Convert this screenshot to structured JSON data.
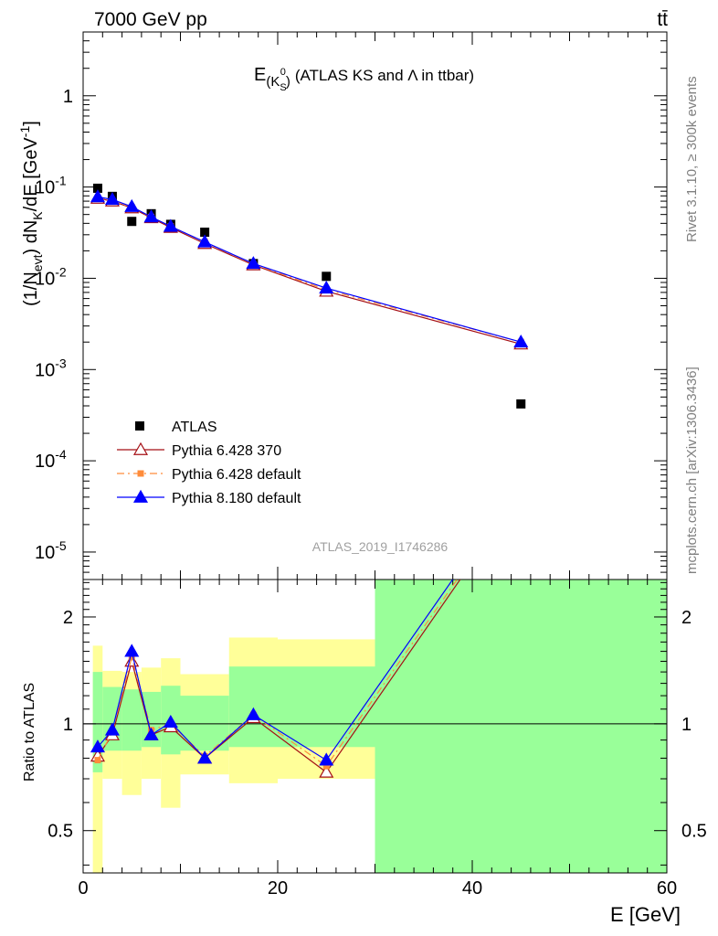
{
  "header": {
    "left": "7000 GeV pp",
    "right": "tt̄"
  },
  "side_labels": {
    "rivet": "Rivet 3.1.10, ≥ 300k events",
    "mcplots": "mcplots.cern.ch [arXiv:1306.3436]"
  },
  "analysis_id": "ATLAS_2019_I1746286",
  "colors": {
    "atlas": "#000000",
    "py6_370": "#a50f15",
    "py6_default": "#ff8c3a",
    "py8_default": "#0000ff",
    "band_inner": "#99ff99",
    "band_outer": "#ffff99"
  },
  "chart_data": [
    {
      "type": "line",
      "panel": "main",
      "title": "E(K_S^0) (ATLAS KS and Λ in ttbar)",
      "ylabel": "(1/N_evt) dN_K/dE [GeV^-1]",
      "y_scale": "log",
      "ylim": [
        5e-06,
        5
      ],
      "xlim": [
        0,
        60
      ],
      "legend_position": "lower-left",
      "legend": [
        "ATLAS",
        "Pythia 6.428 370",
        "Pythia 6.428 default",
        "Pythia 8.180 default"
      ],
      "x": [
        1.5,
        3,
        5,
        7,
        9,
        12.5,
        17.5,
        25,
        45
      ],
      "series": [
        {
          "name": "ATLAS",
          "marker": "square",
          "values": [
            0.097,
            0.079,
            0.042,
            0.051,
            0.039,
            0.032,
            0.0145,
            0.0105,
            0.00042
          ]
        },
        {
          "name": "Pythia 6.428 370",
          "marker": "open-triangle",
          "values": [
            0.075,
            0.07,
            0.059,
            0.046,
            0.036,
            0.024,
            0.014,
            0.0072,
            0.0019
          ]
        },
        {
          "name": "Pythia 6.428 default",
          "marker": "small-square",
          "values": [
            0.076,
            0.071,
            0.06,
            0.047,
            0.037,
            0.025,
            0.0143,
            0.0075,
            0.002
          ]
        },
        {
          "name": "Pythia 8.180 default",
          "marker": "filled-triangle",
          "values": [
            0.078,
            0.073,
            0.061,
            0.047,
            0.037,
            0.025,
            0.0145,
            0.0078,
            0.002
          ]
        }
      ]
    },
    {
      "type": "line",
      "panel": "ratio",
      "ylabel": "Ratio to ATLAS",
      "xlabel": "E [GeV]",
      "y_scale": "log",
      "ylim": [
        0.38,
        2.55
      ],
      "xlim": [
        0,
        60
      ],
      "x_ticks": [
        0,
        20,
        40,
        60
      ],
      "y_ticks": [
        0.5,
        1,
        2
      ],
      "bins": [
        [
          1,
          2
        ],
        [
          2,
          4
        ],
        [
          4,
          6
        ],
        [
          6,
          8
        ],
        [
          8,
          10
        ],
        [
          10,
          15
        ],
        [
          15,
          20
        ],
        [
          20,
          30
        ],
        [
          30,
          60
        ]
      ],
      "band_inner": [
        [
          0.73,
          1.4
        ],
        [
          0.84,
          1.27
        ],
        [
          0.84,
          1.25
        ],
        [
          0.86,
          1.23
        ],
        [
          0.82,
          1.28
        ],
        [
          0.84,
          1.2
        ],
        [
          0.86,
          1.45
        ],
        [
          0.86,
          1.45
        ],
        [
          0.38,
          2.55
        ]
      ],
      "band_outer": [
        [
          0.36,
          1.66
        ],
        [
          0.7,
          1.41
        ],
        [
          0.63,
          1.4
        ],
        [
          0.7,
          1.44
        ],
        [
          0.58,
          1.53
        ],
        [
          0.72,
          1.38
        ],
        [
          0.68,
          1.75
        ],
        [
          0.7,
          1.73
        ],
        [
          0.38,
          2.55
        ]
      ],
      "x": [
        1.5,
        3,
        5,
        7,
        9,
        12.5,
        17.5,
        25,
        45
      ],
      "series": [
        {
          "name": "Pythia 6.428 370",
          "values": [
            0.81,
            0.93,
            1.5,
            0.93,
            0.98,
            0.8,
            1.04,
            0.73,
            4.5
          ]
        },
        {
          "name": "Pythia 6.428 default",
          "values": [
            0.79,
            0.95,
            1.54,
            0.96,
            1.0,
            0.81,
            1.06,
            0.76,
            4.6
          ]
        },
        {
          "name": "Pythia 8.180 default",
          "values": [
            0.86,
            0.96,
            1.6,
            0.93,
            1.01,
            0.8,
            1.06,
            0.79,
            4.8
          ]
        }
      ]
    }
  ]
}
